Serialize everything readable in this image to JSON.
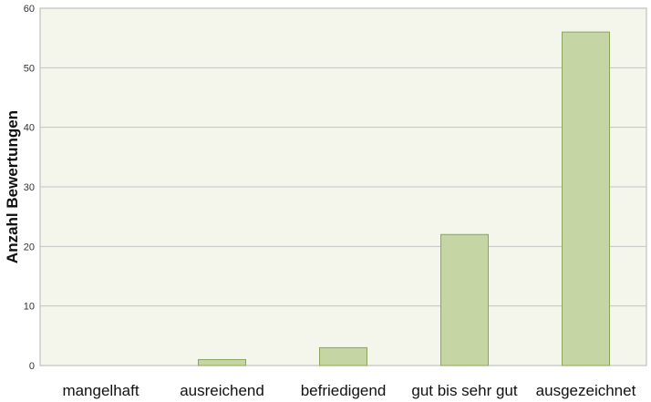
{
  "chart_data": {
    "type": "bar",
    "categories": [
      "mangelhaft",
      "ausreichend",
      "befriedigend",
      "gut bis sehr gut",
      "ausgezeichnet"
    ],
    "values": [
      0,
      1,
      3,
      22,
      56
    ],
    "xlabel": "",
    "ylabel": "Anzahl Bewertungen",
    "ylim": [
      0,
      60
    ],
    "yticks": [
      0,
      10,
      20,
      30,
      40,
      50,
      60
    ],
    "grid": true,
    "legend": "none",
    "colors": {
      "plot_background": "#f4f6ec",
      "bar_fill": "#c5d6a4",
      "bar_stroke": "#8aa55a",
      "grid": "#c4c4c4"
    }
  }
}
